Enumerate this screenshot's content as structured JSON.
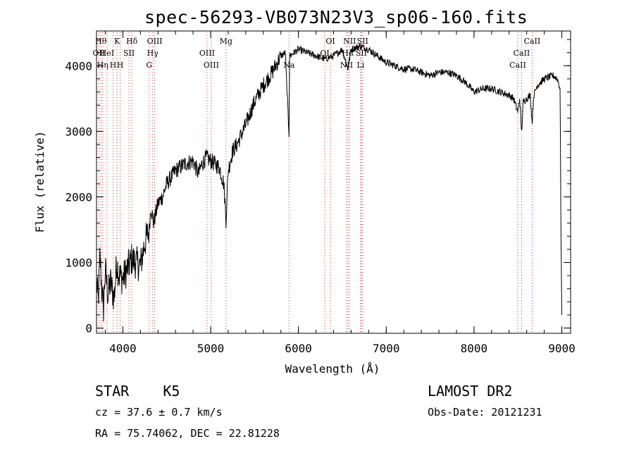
{
  "title": "spec-56293-VB073N23V3_sp06-160.fits",
  "info": {
    "star_label": "STAR",
    "subclass": "K5",
    "survey": "LAMOST DR2",
    "cz": "cz = 37.6 ± 0.7 km/s",
    "obs_date": "Obs-Date: 20121231",
    "coords": "RA =  75.74062, DEC =  22.81228"
  },
  "chart_data": {
    "type": "line",
    "xlabel": "Wavelength (Å)",
    "ylabel": "Flux (relative)",
    "xlim": [
      3700,
      9100
    ],
    "ylim": [
      -80,
      4530
    ],
    "xticks": [
      4000,
      5000,
      6000,
      7000,
      8000,
      9000
    ],
    "yticks": [
      0,
      1000,
      2000,
      3000,
      4000
    ],
    "grid": false,
    "line_color": "#000000",
    "marker_color": "#d03030",
    "series": [
      {
        "x": [
          3700,
          3720,
          3740,
          3760,
          3780,
          3800,
          3830,
          3860,
          3900,
          3930,
          3960,
          4000,
          4050,
          4100,
          4150,
          4200,
          4250,
          4300,
          4320,
          4350,
          4400,
          4450,
          4500,
          4600,
          4700,
          4800,
          4861,
          4900,
          4950,
          5000,
          5050,
          5100,
          5150,
          5175,
          5200,
          5250,
          5300,
          5400,
          5500,
          5600,
          5700,
          5800,
          5850,
          5893,
          5900,
          5950,
          6000,
          6100,
          6200,
          6300,
          6400,
          6500,
          6563,
          6600,
          6700,
          6800,
          6900,
          7000,
          7100,
          7200,
          7300,
          7400,
          7500,
          7600,
          7700,
          7800,
          7900,
          8000,
          8100,
          8200,
          8300,
          8400,
          8450,
          8498,
          8520,
          8542,
          8560,
          8600,
          8640,
          8662,
          8680,
          8720,
          8800,
          8900,
          8950,
          8980,
          8990,
          9000
        ],
        "y": [
          700,
          400,
          1100,
          600,
          300,
          900,
          500,
          700,
          450,
          1000,
          800,
          750,
          900,
          1050,
          1000,
          950,
          1300,
          1500,
          1850,
          1600,
          1900,
          2000,
          2200,
          2400,
          2500,
          2550,
          2350,
          2500,
          2600,
          2550,
          2500,
          2450,
          2200,
          1650,
          2400,
          2700,
          2800,
          3100,
          3450,
          3700,
          3900,
          4150,
          4200,
          2950,
          4150,
          4200,
          4250,
          4200,
          4150,
          4100,
          4150,
          4250,
          3950,
          4250,
          4300,
          4250,
          4150,
          4050,
          4000,
          3950,
          3950,
          3900,
          3850,
          3900,
          3900,
          3850,
          3750,
          3600,
          3650,
          3650,
          3600,
          3550,
          3500,
          3300,
          3500,
          2980,
          3450,
          3500,
          3550,
          3130,
          3550,
          3700,
          3800,
          3850,
          3800,
          3650,
          1500,
          200
        ]
      }
    ],
    "lines": [
      {
        "x": 3727,
        "label": "OII",
        "row": 2
      },
      {
        "x": 3750,
        "label": "Hθ",
        "row": 1
      },
      {
        "x": 3770,
        "label": "Hη",
        "row": 3
      },
      {
        "x": 3820,
        "label": "HeI",
        "row": 2
      },
      {
        "x": 3889,
        "label": "H",
        "row": 3
      },
      {
        "x": 3934,
        "label": "K",
        "row": 1
      },
      {
        "x": 3969,
        "label": "H",
        "row": 3
      },
      {
        "x": 4070,
        "label": "SII",
        "row": 2
      },
      {
        "x": 4102,
        "label": "Hδ",
        "row": 1
      },
      {
        "x": 4300,
        "label": "G",
        "row": 3
      },
      {
        "x": 4340,
        "label": "Hγ",
        "row": 2
      },
      {
        "x": 4363,
        "label": "OIII",
        "row": 1
      },
      {
        "x": 4959,
        "label": "OIII",
        "row": 2
      },
      {
        "x": 5007,
        "label": "OIII",
        "row": 3
      },
      {
        "x": 5175,
        "label": "Mg",
        "row": 1
      },
      {
        "x": 5893,
        "label": "Na",
        "row": 3
      },
      {
        "x": 6300,
        "label": "OI",
        "row": 2
      },
      {
        "x": 6364,
        "label": "OI",
        "row": 1
      },
      {
        "x": 6548,
        "label": "NII",
        "row": 3
      },
      {
        "x": 6563,
        "label": "Hα",
        "row": 2
      },
      {
        "x": 6583,
        "label": "NII",
        "row": 1
      },
      {
        "x": 6708,
        "label": "Li",
        "row": 3
      },
      {
        "x": 6716,
        "label": "SII",
        "row": 2
      },
      {
        "x": 6731,
        "label": "SII",
        "row": 1
      },
      {
        "x": 8498,
        "label": "CaII",
        "row": 3
      },
      {
        "x": 8542,
        "label": "CaII",
        "row": 2
      },
      {
        "x": 8662,
        "label": "CaII",
        "row": 1
      }
    ]
  }
}
